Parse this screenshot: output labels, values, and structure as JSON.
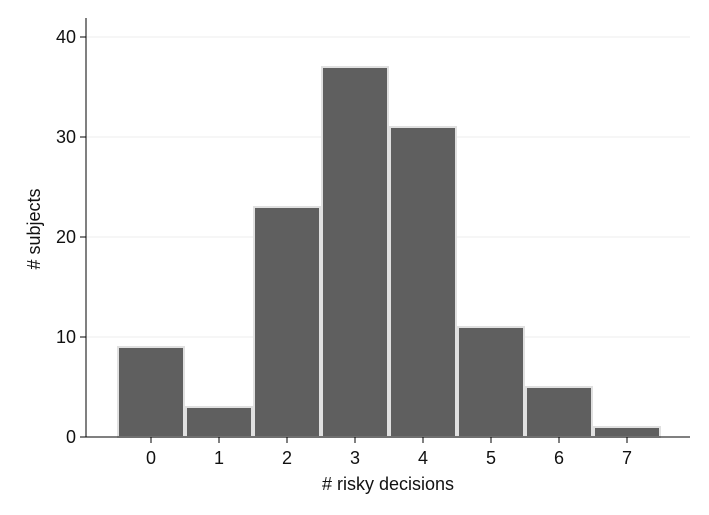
{
  "chart_data": {
    "type": "bar",
    "categories": [
      "0",
      "1",
      "2",
      "3",
      "4",
      "5",
      "6",
      "7"
    ],
    "values": [
      9,
      3,
      23,
      37,
      31,
      11,
      5,
      1
    ],
    "title": "",
    "xlabel": "# risky decisions",
    "ylabel": "# subjects",
    "ylim": [
      0,
      40
    ],
    "yticks": [
      0,
      10,
      20,
      30,
      40
    ],
    "grid": true,
    "bar_color": "#5f5f5f",
    "bar_edge_color": "#e0e0e0"
  }
}
